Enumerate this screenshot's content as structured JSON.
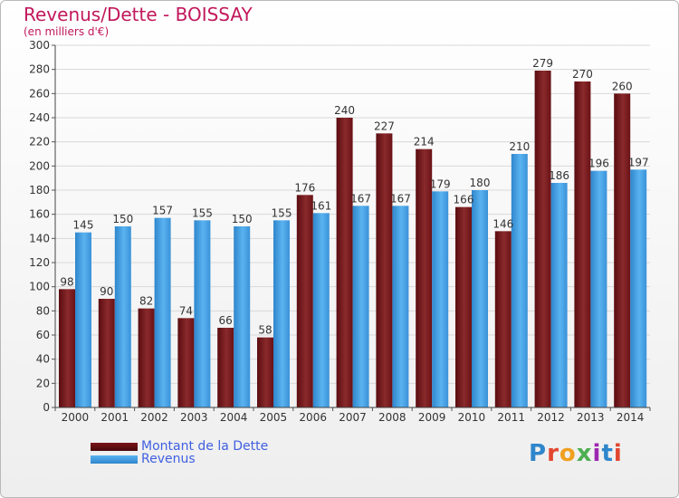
{
  "header": {
    "title": "Revenus/Dette - BOISSAY",
    "subtitle": "(en milliers d'€)"
  },
  "brand": {
    "text": "Proxiti"
  },
  "colors": {
    "debt": "#7a1418",
    "revenue": "#46a3e6",
    "title": "#c2185b",
    "legend_text": "#4060e0"
  },
  "chart_data": {
    "type": "bar",
    "title": "Revenus/Dette - BOISSAY",
    "ylabel": "(en milliers d'€)",
    "xlabel": "",
    "ylim": [
      0,
      300
    ],
    "yticks": [
      0,
      20,
      40,
      60,
      80,
      100,
      120,
      140,
      160,
      180,
      200,
      220,
      240,
      260,
      280,
      300
    ],
    "grid": true,
    "legend_position": "bottom-left",
    "categories": [
      "2000",
      "2001",
      "2002",
      "2003",
      "2004",
      "2005",
      "2006",
      "2007",
      "2008",
      "2009",
      "2010",
      "2011",
      "2012",
      "2013",
      "2014"
    ],
    "series": [
      {
        "name": "Montant de la Dette",
        "values": [
          98,
          90,
          82,
          74,
          66,
          58,
          176,
          240,
          227,
          214,
          166,
          146,
          279,
          270,
          260
        ]
      },
      {
        "name": "Revenus",
        "values": [
          145,
          150,
          157,
          155,
          150,
          155,
          161,
          167,
          167,
          179,
          180,
          210,
          186,
          196,
          197
        ]
      }
    ]
  }
}
